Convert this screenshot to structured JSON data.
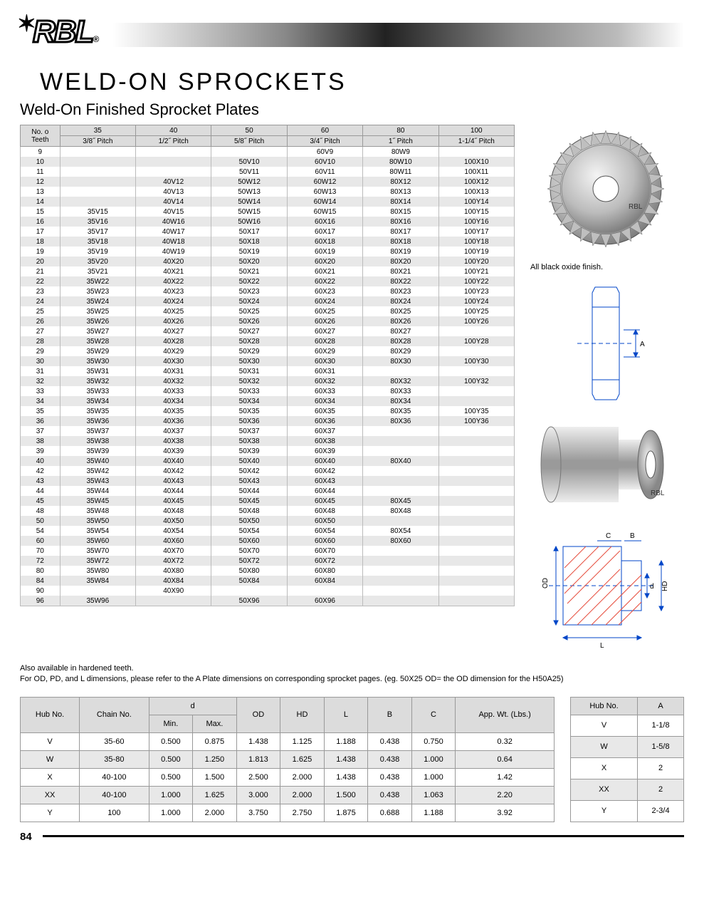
{
  "brand": "RBL",
  "title": "WELD-ON  SPROCKETS",
  "subtitle": "Weld-On Finished Sprocket Plates",
  "caption_finish": "All black oxide finish.",
  "note_line1": "Also available in hardened teeth.",
  "note_line2": "For OD, PD, and L dimensions, please refer to the A Plate dimensions on corresponding sprocket pages. (eg. 50X25 OD= the OD dimension for the H50A25)",
  "page_number": "84",
  "sprocket_table": {
    "corner": "No. o Teeth",
    "col_headers_top": [
      "35",
      "40",
      "50",
      "60",
      "80",
      "100"
    ],
    "col_headers_bot": [
      "3/8˝ Pitch",
      "1/2˝ Pitch",
      "5/8˝ Pitch",
      "3/4˝ Pitch",
      "1˝ Pitch",
      "1-1/4˝ Pitch"
    ],
    "rows": [
      {
        "t": "9",
        "c": [
          "",
          "",
          "",
          "60V9",
          "80W9",
          ""
        ]
      },
      {
        "t": "10",
        "c": [
          "",
          "",
          "50V10",
          "60V10",
          "80W10",
          "100X10"
        ]
      },
      {
        "t": "11",
        "c": [
          "",
          "",
          "50V11",
          "60V11",
          "80W11",
          "100X11"
        ]
      },
      {
        "t": "12",
        "c": [
          "",
          "40V12",
          "50W12",
          "60W12",
          "80X12",
          "100X12"
        ]
      },
      {
        "t": "13",
        "c": [
          "",
          "40V13",
          "50W13",
          "60W13",
          "80X13",
          "100X13"
        ]
      },
      {
        "t": "14",
        "c": [
          "",
          "40V14",
          "50W14",
          "60W14",
          "80X14",
          "100Y14"
        ]
      },
      {
        "t": "15",
        "c": [
          "35V15",
          "40V15",
          "50W15",
          "60W15",
          "80X15",
          "100Y15"
        ]
      },
      {
        "t": "16",
        "c": [
          "35V16",
          "40W16",
          "50W16",
          "60X16",
          "80X16",
          "100Y16"
        ]
      },
      {
        "t": "17",
        "c": [
          "35V17",
          "40W17",
          "50X17",
          "60X17",
          "80X17",
          "100Y17"
        ]
      },
      {
        "t": "18",
        "c": [
          "35V18",
          "40W18",
          "50X18",
          "60X18",
          "80X18",
          "100Y18"
        ]
      },
      {
        "t": "19",
        "c": [
          "35V19",
          "40W19",
          "50X19",
          "60X19",
          "80X19",
          "100Y19"
        ]
      },
      {
        "t": "20",
        "c": [
          "35V20",
          "40X20",
          "50X20",
          "60X20",
          "80X20",
          "100Y20"
        ]
      },
      {
        "t": "21",
        "c": [
          "35V21",
          "40X21",
          "50X21",
          "60X21",
          "80X21",
          "100Y21"
        ]
      },
      {
        "t": "22",
        "c": [
          "35W22",
          "40X22",
          "50X22",
          "60X22",
          "80X22",
          "100Y22"
        ]
      },
      {
        "t": "23",
        "c": [
          "35W23",
          "40X23",
          "50X23",
          "60X23",
          "80X23",
          "100Y23"
        ]
      },
      {
        "t": "24",
        "c": [
          "35W24",
          "40X24",
          "50X24",
          "60X24",
          "80X24",
          "100Y24"
        ]
      },
      {
        "t": "25",
        "c": [
          "35W25",
          "40X25",
          "50X25",
          "60X25",
          "80X25",
          "100Y25"
        ]
      },
      {
        "t": "26",
        "c": [
          "35W26",
          "40X26",
          "50X26",
          "60X26",
          "80X26",
          "100Y26"
        ]
      },
      {
        "t": "27",
        "c": [
          "35W27",
          "40X27",
          "50X27",
          "60X27",
          "80X27",
          ""
        ]
      },
      {
        "t": "28",
        "c": [
          "35W28",
          "40X28",
          "50X28",
          "60X28",
          "80X28",
          "100Y28"
        ]
      },
      {
        "t": "29",
        "c": [
          "35W29",
          "40X29",
          "50X29",
          "60X29",
          "80X29",
          ""
        ]
      },
      {
        "t": "30",
        "c": [
          "35W30",
          "40X30",
          "50X30",
          "60X30",
          "80X30",
          "100Y30"
        ]
      },
      {
        "t": "31",
        "c": [
          "35W31",
          "40X31",
          "50X31",
          "60X31",
          "",
          ""
        ]
      },
      {
        "t": "32",
        "c": [
          "35W32",
          "40X32",
          "50X32",
          "60X32",
          "80X32",
          "100Y32"
        ]
      },
      {
        "t": "33",
        "c": [
          "35W33",
          "40X33",
          "50X33",
          "60X33",
          "80X33",
          ""
        ]
      },
      {
        "t": "34",
        "c": [
          "35W34",
          "40X34",
          "50X34",
          "60X34",
          "80X34",
          ""
        ]
      },
      {
        "t": "35",
        "c": [
          "35W35",
          "40X35",
          "50X35",
          "60X35",
          "80X35",
          "100Y35"
        ]
      },
      {
        "t": "36",
        "c": [
          "35W36",
          "40X36",
          "50X36",
          "60X36",
          "80X36",
          "100Y36"
        ]
      },
      {
        "t": "37",
        "c": [
          "35W37",
          "40X37",
          "50X37",
          "60X37",
          "",
          ""
        ]
      },
      {
        "t": "38",
        "c": [
          "35W38",
          "40X38",
          "50X38",
          "60X38",
          "",
          ""
        ]
      },
      {
        "t": "39",
        "c": [
          "35W39",
          "40X39",
          "50X39",
          "60X39",
          "",
          ""
        ]
      },
      {
        "t": "40",
        "c": [
          "35W40",
          "40X40",
          "50X40",
          "60X40",
          "80X40",
          ""
        ]
      },
      {
        "t": "42",
        "c": [
          "35W42",
          "40X42",
          "50X42",
          "60X42",
          "",
          ""
        ]
      },
      {
        "t": "43",
        "c": [
          "35W43",
          "40X43",
          "50X43",
          "60X43",
          "",
          ""
        ]
      },
      {
        "t": "44",
        "c": [
          "35W44",
          "40X44",
          "50X44",
          "60X44",
          "",
          ""
        ]
      },
      {
        "t": "45",
        "c": [
          "35W45",
          "40X45",
          "50X45",
          "60X45",
          "80X45",
          ""
        ]
      },
      {
        "t": "48",
        "c": [
          "35W48",
          "40X48",
          "50X48",
          "60X48",
          "80X48",
          ""
        ]
      },
      {
        "t": "50",
        "c": [
          "35W50",
          "40X50",
          "50X50",
          "60X50",
          "",
          ""
        ]
      },
      {
        "t": "54",
        "c": [
          "35W54",
          "40X54",
          "50X54",
          "60X54",
          "80X54",
          ""
        ]
      },
      {
        "t": "60",
        "c": [
          "35W60",
          "40X60",
          "50X60",
          "60X60",
          "80X60",
          ""
        ]
      },
      {
        "t": "70",
        "c": [
          "35W70",
          "40X70",
          "50X70",
          "60X70",
          "",
          ""
        ]
      },
      {
        "t": "72",
        "c": [
          "35W72",
          "40X72",
          "50X72",
          "60X72",
          "",
          ""
        ]
      },
      {
        "t": "80",
        "c": [
          "35W80",
          "40X80",
          "50X80",
          "60X80",
          "",
          ""
        ]
      },
      {
        "t": "84",
        "c": [
          "35W84",
          "40X84",
          "50X84",
          "60X84",
          "",
          ""
        ]
      },
      {
        "t": "90",
        "c": [
          "",
          "40X90",
          "",
          "",
          "",
          ""
        ]
      },
      {
        "t": "96",
        "c": [
          "35W96",
          "",
          "50X96",
          "60X96",
          "",
          ""
        ]
      }
    ]
  },
  "hub_table": {
    "headers": {
      "hub": "Hub No.",
      "chain": "Chain No.",
      "d": "d",
      "dmin": "Min.",
      "dmax": "Max.",
      "od": "OD",
      "hd": "HD",
      "l": "L",
      "b": "B",
      "c": "C",
      "wt": "App. Wt. (Lbs.)"
    },
    "rows": [
      {
        "hub": "V",
        "chain": "35-60",
        "dmin": "0.500",
        "dmax": "0.875",
        "od": "1.438",
        "hd": "1.125",
        "l": "1.188",
        "b": "0.438",
        "c": "0.750",
        "wt": "0.32"
      },
      {
        "hub": "W",
        "chain": "35-80",
        "dmin": "0.500",
        "dmax": "1.250",
        "od": "1.813",
        "hd": "1.625",
        "l": "1.438",
        "b": "0.438",
        "c": "1.000",
        "wt": "0.64"
      },
      {
        "hub": "X",
        "chain": "40-100",
        "dmin": "0.500",
        "dmax": "1.500",
        "od": "2.500",
        "hd": "2.000",
        "l": "1.438",
        "b": "0.438",
        "c": "1.000",
        "wt": "1.42"
      },
      {
        "hub": "XX",
        "chain": "40-100",
        "dmin": "1.000",
        "dmax": "1.625",
        "od": "3.000",
        "hd": "2.000",
        "l": "1.500",
        "b": "0.438",
        "c": "1.063",
        "wt": "2.20"
      },
      {
        "hub": "Y",
        "chain": "100",
        "dmin": "1.000",
        "dmax": "2.000",
        "od": "3.750",
        "hd": "2.750",
        "l": "1.875",
        "b": "0.688",
        "c": "1.188",
        "wt": "3.92"
      }
    ]
  },
  "hub_a_table": {
    "headers": {
      "hub": "Hub No.",
      "a": "A"
    },
    "rows": [
      {
        "hub": "V",
        "a": "1-1/8"
      },
      {
        "hub": "W",
        "a": "1-5/8"
      },
      {
        "hub": "X",
        "a": "2"
      },
      {
        "hub": "XX",
        "a": "2"
      },
      {
        "hub": "Y",
        "a": "2-3/4"
      }
    ]
  },
  "diagram": {
    "labels": {
      "a": "A",
      "c": "C",
      "b": "B",
      "od": "OD",
      "d": "d",
      "hd": "HD",
      "l": "L"
    },
    "line_color": "#0046c8",
    "hatch_color": "#e74c3c"
  }
}
